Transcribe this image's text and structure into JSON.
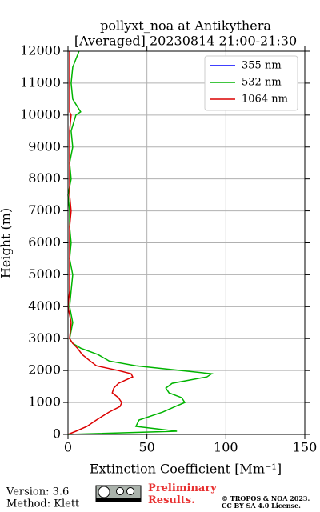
{
  "chart_data": {
    "type": "line",
    "title": [
      "pollyxt_noa at Antikythera",
      "[Averaged] 20230814 21:00-21:30"
    ],
    "x_label": "Extinction Coefficient [Mm⁻¹]",
    "y_label": "Height (m)",
    "y": [
      0,
      100,
      250,
      450,
      700,
      875,
      1000,
      1150,
      1300,
      1450,
      1600,
      1800,
      1900,
      2000,
      2150,
      2300,
      2500,
      2700,
      2850,
      3000,
      3500,
      4000,
      4500,
      5000,
      5500,
      6000,
      6500,
      7000,
      7500,
      8000,
      8500,
      9000,
      9500,
      10000,
      10100,
      10500,
      11000,
      11500,
      12000
    ],
    "series": [
      {
        "name": "355 nm",
        "color": "#0000ff",
        "values": [
          null,
          null,
          null,
          null,
          null,
          null,
          null,
          null,
          null,
          null,
          null,
          null,
          null,
          null,
          null,
          null,
          null,
          null,
          null,
          null,
          null,
          null,
          null,
          null,
          null,
          null,
          null,
          null,
          null,
          null,
          null,
          null,
          null,
          null,
          null,
          null,
          null,
          null,
          null
        ]
      },
      {
        "name": "532 nm",
        "color": "#00b400",
        "values": [
          0,
          69,
          43,
          45,
          60,
          68,
          74,
          72,
          64,
          62,
          66,
          88,
          91,
          72,
          43,
          26,
          19,
          8,
          3,
          1,
          3,
          1,
          2,
          3,
          1,
          2,
          1,
          1,
          0,
          2,
          1,
          3,
          2,
          5,
          8,
          3,
          2,
          3,
          7
        ]
      },
      {
        "name": "1064 nm",
        "color": "#dc0000",
        "values": [
          0,
          5,
          12,
          18,
          26,
          33,
          34,
          32,
          28,
          29,
          32,
          41,
          40,
          32,
          18,
          14,
          9,
          6,
          3,
          1,
          2,
          0,
          1,
          1,
          1,
          1,
          1,
          2,
          1,
          1,
          1,
          1,
          1,
          2,
          1,
          1,
          1,
          1,
          1
        ]
      }
    ],
    "xlim": [
      0,
      150
    ],
    "xticks": [
      0,
      50,
      100,
      150
    ],
    "ylim": [
      0,
      12000
    ],
    "yticks": [
      0,
      1000,
      2000,
      3000,
      4000,
      5000,
      6000,
      7000,
      8000,
      9000,
      10000,
      11000,
      12000
    ],
    "grid": true,
    "legend": "upper right",
    "footer": {
      "version": "Version: 3.6",
      "method": "Method: Klett",
      "preliminary": "Preliminary Results.",
      "copyright": "© TROPOS & NOA 2023.",
      "license": "CC BY SA 4.0 License."
    }
  }
}
